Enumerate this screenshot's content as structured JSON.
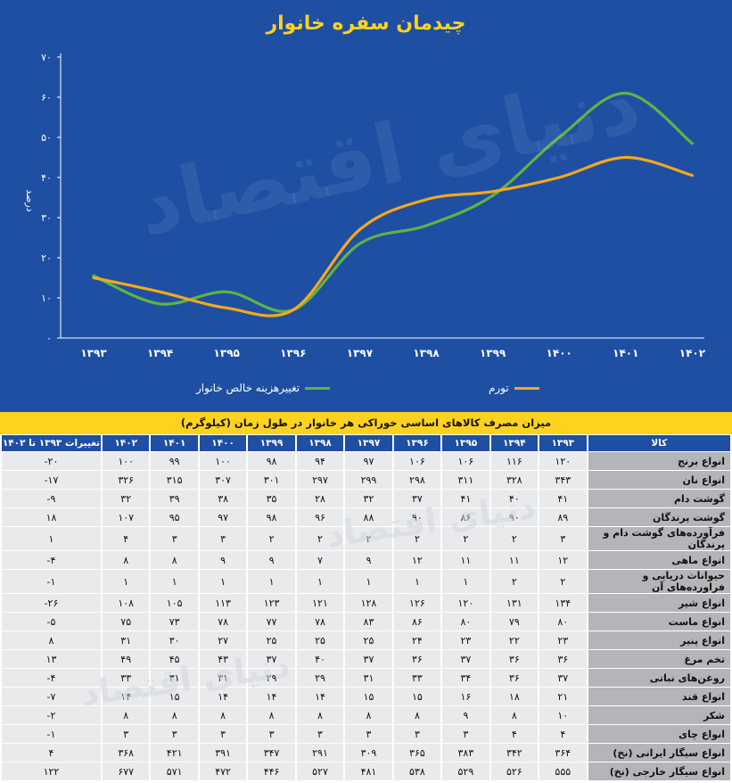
{
  "chart_data": {
    "type": "line",
    "title": "چیدمان سفره خانوار",
    "ylabel": "درصد",
    "ylim": [
      0,
      70
    ],
    "yticks": [
      "۰",
      "۱۰",
      "۲۰",
      "۳۰",
      "۴۰",
      "۵۰",
      "۶۰",
      "۷۰"
    ],
    "ytick_values": [
      0,
      10,
      20,
      30,
      40,
      50,
      60,
      70
    ],
    "categories": [
      "۱۳۹۳",
      "۱۳۹۴",
      "۱۳۹۵",
      "۱۳۹۶",
      "۱۳۹۷",
      "۱۳۹۸",
      "۱۳۹۹",
      "۱۴۰۰",
      "۱۴۰۱",
      "۱۴۰۲"
    ],
    "grid": false,
    "legend_position": "bottom",
    "series": [
      {
        "name": "تغییرهزینه خالص  خانوار",
        "color": "#5fb346",
        "values": [
          15.5,
          8.5,
          11.5,
          7,
          23.5,
          28,
          35.5,
          50,
          61,
          48.5
        ]
      },
      {
        "name": "تورم",
        "color": "#f5a81c",
        "values": [
          15,
          11.5,
          7.5,
          7,
          27,
          34.5,
          36.5,
          40,
          45,
          40.5
        ]
      }
    ]
  },
  "watermark": "دنیای اقتصاد",
  "table": {
    "title": "میزان مصرف کالاهای اساسی خوراکی هر خانوار در طول زمان (کیلوگرم)",
    "item_header": "کالا",
    "change_header": "تغییرات ۱۳۹۳ تا ۱۴۰۲",
    "year_headers": [
      "۱۳۹۳",
      "۱۳۹۴",
      "۱۳۹۵",
      "۱۳۹۶",
      "۱۳۹۷",
      "۱۳۹۸",
      "۱۳۹۹",
      "۱۴۰۰",
      "۱۴۰۱",
      "۱۴۰۲"
    ],
    "rows": [
      {
        "item": "انواع برنج",
        "values": [
          "۱۲۰",
          "۱۱۶",
          "۱۰۶",
          "۱۰۶",
          "۹۷",
          "۹۴",
          "۹۸",
          "۱۰۰",
          "۹۹",
          "۱۰۰"
        ],
        "change": "-۲۰"
      },
      {
        "item": "انواع نان",
        "values": [
          "۳۴۳",
          "۳۲۸",
          "۳۱۱",
          "۲۹۸",
          "۲۹۹",
          "۲۹۷",
          "۳۰۱",
          "۳۰۷",
          "۳۱۵",
          "۳۲۶"
        ],
        "change": "-۱۷"
      },
      {
        "item": "گوشت دام",
        "values": [
          "۴۱",
          "۴۰",
          "۴۱",
          "۳۷",
          "۳۲",
          "۲۸",
          "۳۵",
          "۳۸",
          "۳۹",
          "۳۲"
        ],
        "change": "-۹"
      },
      {
        "item": "گوشت پرندگان",
        "values": [
          "۸۹",
          "۹۰",
          "۸۶",
          "۹۰",
          "۸۸",
          "۹۶",
          "۹۸",
          "۹۷",
          "۹۵",
          "۱۰۷"
        ],
        "change": "۱۸"
      },
      {
        "item": "فرآورده‌های گوشت دام و پرندگان",
        "values": [
          "۳",
          "۲",
          "۲",
          "۲",
          "۲",
          "۲",
          "۲",
          "۳",
          "۳",
          "۴"
        ],
        "change": "۱"
      },
      {
        "item": "انواع ماهی",
        "values": [
          "۱۲",
          "۱۱",
          "۱۱",
          "۱۲",
          "۹",
          "۷",
          "۹",
          "۹",
          "۸",
          "۸"
        ],
        "change": "-۴"
      },
      {
        "item": "حیوانات دریایی و فراورده‌های آن",
        "values": [
          "۲",
          "۲",
          "۱",
          "۱",
          "۱",
          "۱",
          "۱",
          "۱",
          "۱",
          "۱"
        ],
        "change": "-۱"
      },
      {
        "item": "انواع شیر",
        "values": [
          "۱۳۴",
          "۱۳۱",
          "۱۲۰",
          "۱۲۶",
          "۱۲۸",
          "۱۲۱",
          "۱۲۳",
          "۱۱۳",
          "۱۰۵",
          "۱۰۸"
        ],
        "change": "-۲۶"
      },
      {
        "item": "انواع ماست",
        "values": [
          "۸۰",
          "۷۹",
          "۸۰",
          "۸۶",
          "۸۳",
          "۷۸",
          "۷۷",
          "۷۸",
          "۷۳",
          "۷۵"
        ],
        "change": "-۵"
      },
      {
        "item": "انواع پنیر",
        "values": [
          "۲۳",
          "۲۲",
          "۲۳",
          "۲۴",
          "۲۵",
          "۲۵",
          "۲۵",
          "۲۷",
          "۳۰",
          "۳۱"
        ],
        "change": "۸"
      },
      {
        "item": "تخم مرغ",
        "values": [
          "۳۶",
          "۳۶",
          "۳۷",
          "۳۶",
          "۳۷",
          "۴۰",
          "۳۷",
          "۴۳",
          "۴۵",
          "۴۹"
        ],
        "change": "۱۳"
      },
      {
        "item": "روغن‌های نباتی",
        "values": [
          "۳۷",
          "۳۶",
          "۳۴",
          "۳۳",
          "۳۱",
          "۲۹",
          "۲۹",
          "۳۱",
          "۳۱",
          "۳۳"
        ],
        "change": "-۴"
      },
      {
        "item": "انواع قند",
        "values": [
          "۲۱",
          "۱۸",
          "۱۶",
          "۱۵",
          "۱۵",
          "۱۴",
          "۱۴",
          "۱۴",
          "۱۵",
          "۱۴"
        ],
        "change": "-۷"
      },
      {
        "item": "شکر",
        "values": [
          "۱۰",
          "۸",
          "۹",
          "۸",
          "۸",
          "۸",
          "۸",
          "۸",
          "۸",
          "۸"
        ],
        "change": "-۲"
      },
      {
        "item": "انواع چای",
        "values": [
          "۴",
          "۴",
          "۳",
          "۳",
          "۳",
          "۳",
          "۳",
          "۳",
          "۳",
          "۳"
        ],
        "change": "-۱"
      },
      {
        "item": "انواع سیگار ایرانی (نخ)",
        "values": [
          "۳۶۴",
          "۳۴۲",
          "۳۸۳",
          "۳۶۵",
          "۳۰۹",
          "۲۹۱",
          "۳۴۷",
          "۳۹۱",
          "۴۲۱",
          "۳۶۸"
        ],
        "change": "۴"
      },
      {
        "item": "انواع سیگار خارجی (نخ)",
        "values": [
          "۵۵۵",
          "۵۲۶",
          "۵۲۹",
          "۵۳۸",
          "۴۸۱",
          "۵۲۷",
          "۴۴۶",
          "۴۷۲",
          "۵۷۱",
          "۶۷۷"
        ],
        "change": "۱۲۲"
      }
    ]
  }
}
